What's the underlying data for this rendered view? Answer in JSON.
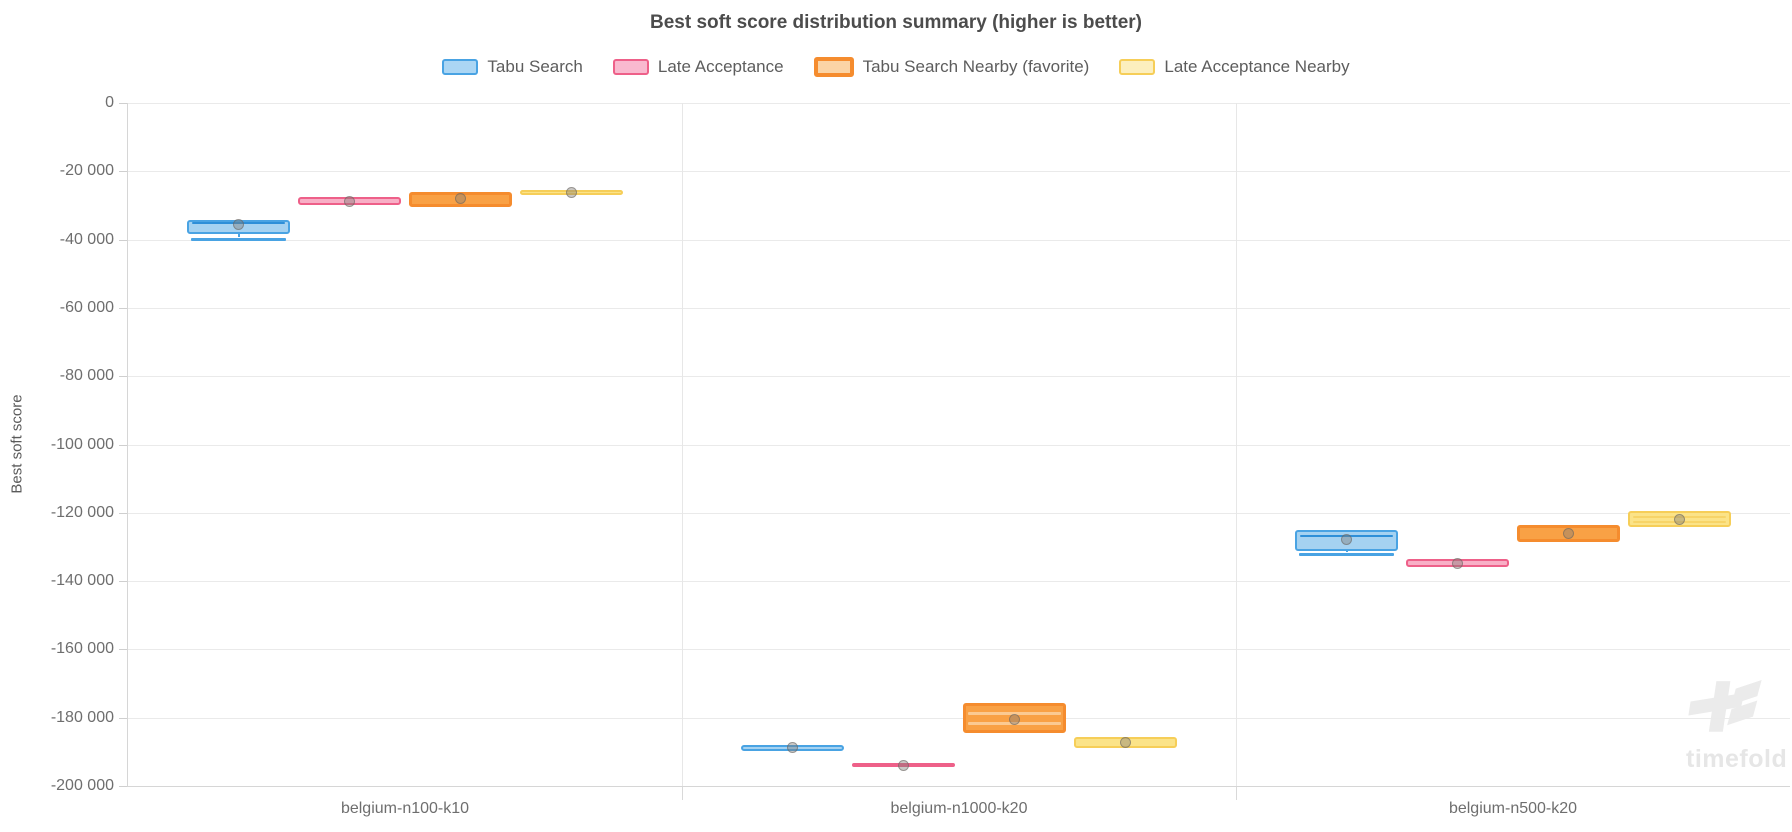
{
  "title": "Best soft score distribution summary (higher is better)",
  "y_axis": {
    "title": "Best soft score",
    "tick_labels": [
      "0",
      "-20 000",
      "-40 000",
      "-60 000",
      "-80 000",
      "-100 000",
      "-120 000",
      "-140 000",
      "-160 000",
      "-180 000",
      "-200 000"
    ]
  },
  "watermark": {
    "text": "timefold"
  },
  "chart_data": {
    "type": "box",
    "title": "Best soft score distribution summary (higher is better)",
    "ylabel": "Best soft score",
    "ylim": [
      -200000,
      0
    ],
    "ytick_step": 20000,
    "grid": true,
    "legend_position": "top",
    "categories": [
      "belgium-n100-k10",
      "belgium-n1000-k20",
      "belgium-n500-k20"
    ],
    "series": [
      {
        "name": "Tabu Search",
        "favorite": false,
        "color": "#49a3e3",
        "fill": "#a5d2f1",
        "legend_fill": "#abd6f4",
        "median_color": "#2e8fd8",
        "boxes": [
          {
            "high": -34300,
            "low": -38400,
            "mean": -35700,
            "medians": [
              -35200
            ],
            "whisker_low": -39900
          },
          {
            "high": -188000,
            "low": -189700,
            "mean": -188700
          },
          {
            "high": -125000,
            "low": -131200,
            "mean": -127800,
            "medians": [
              -126700
            ],
            "whisker_low": -132100
          }
        ]
      },
      {
        "name": "Late Acceptance",
        "favorite": false,
        "color": "#ee6089",
        "fill": "#f8afc6",
        "legend_fill": "#f9b9cf",
        "median_color": "#f390ae",
        "boxes": [
          {
            "high": -27600,
            "low": -29900,
            "mean": -28700
          },
          {
            "high": -193200,
            "low": -194500,
            "mean": -193900
          },
          {
            "high": -133500,
            "low": -136000,
            "mean": -134800
          }
        ]
      },
      {
        "name": "Tabu Search Nearby (favorite)",
        "favorite": true,
        "color": "#f58c2e",
        "fill": "#f9a145",
        "legend_fill": "#fbd4a5",
        "median_color": "#fbca92",
        "boxes": [
          {
            "high": -26000,
            "low": -30500,
            "mean": -28000
          },
          {
            "high": -175600,
            "low": -184400,
            "mean": -180400,
            "medians": [
              -178700,
              -181600
            ]
          },
          {
            "high": -123600,
            "low": -128600,
            "mean": -126100
          }
        ]
      },
      {
        "name": "Late Acceptance Nearby",
        "favorite": false,
        "color": "#f6ce58",
        "fill": "#fbe388",
        "legend_fill": "#fcefbe",
        "median_color": "#f7d468",
        "boxes": [
          {
            "high": -25500,
            "low": -26900,
            "mean": -26200
          },
          {
            "high": -185600,
            "low": -188800,
            "mean": -187300
          },
          {
            "high": -119400,
            "low": -124100,
            "mean": -121900,
            "medians": [
              -121100,
              -122600
            ]
          }
        ]
      }
    ]
  }
}
